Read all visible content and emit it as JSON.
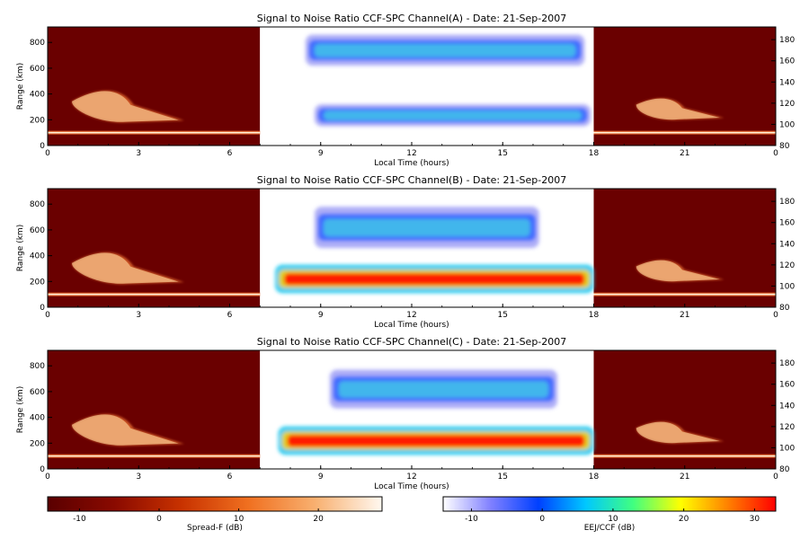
{
  "chart_data": {
    "type": "heatmap",
    "panels": [
      {
        "id": "A",
        "title": "Signal to Noise Ratio CCF-SPC Channel(A) - Date: 21-Sep-2007",
        "xlabel": "Local Time (hours)",
        "ylabel": "Range (km)",
        "x_ticks": [
          "0",
          "3",
          "6",
          "9",
          "12",
          "15",
          "18",
          "21",
          "0"
        ],
        "x_range_hours": [
          0,
          24
        ],
        "y_left_ticks": [
          "0",
          "200",
          "400",
          "600",
          "800"
        ],
        "y_left_range_km": [
          0,
          920
        ],
        "y_right_ticks": [
          "80",
          "100",
          "120",
          "140",
          "160",
          "180"
        ],
        "y_right_range_km": [
          80,
          192
        ],
        "night_windows_hours": [
          [
            0,
            7
          ],
          [
            18,
            24
          ]
        ],
        "day_window_hours": [
          7,
          18
        ],
        "day_echoes": [
          {
            "t_start": 8.8,
            "t_end": 17.9,
            "alt_low_km": 150,
            "alt_high_km": 320,
            "peak_db": 10
          },
          {
            "t_start": 8.5,
            "t_end": 17.7,
            "alt_low_km": 620,
            "alt_high_km": 860,
            "peak_db": 6
          }
        ],
        "night_echoes": [
          {
            "t_start": 0,
            "t_end": 7,
            "alt_km": 100,
            "kind": "layer"
          },
          {
            "t_start": 0.8,
            "t_end": 4.5,
            "alt_low_km": 180,
            "alt_high_km": 450,
            "kind": "spread-F"
          },
          {
            "t_start": 18,
            "t_end": 24,
            "alt_km": 100,
            "kind": "layer"
          },
          {
            "t_start": 19.4,
            "t_end": 22.3,
            "alt_low_km": 200,
            "alt_high_km": 380,
            "kind": "spread-F"
          }
        ]
      },
      {
        "id": "B",
        "title": "Signal to Noise Ratio CCF-SPC Channel(B) - Date: 21-Sep-2007",
        "xlabel": "Local Time (hours)",
        "ylabel": "Range (km)",
        "x_ticks": [
          "0",
          "3",
          "6",
          "9",
          "12",
          "15",
          "18",
          "21",
          "0"
        ],
        "x_range_hours": [
          0,
          24
        ],
        "y_left_ticks": [
          "0",
          "200",
          "400",
          "600",
          "800"
        ],
        "y_left_range_km": [
          0,
          920
        ],
        "y_right_ticks": [
          "80",
          "100",
          "120",
          "140",
          "160",
          "180"
        ],
        "y_right_range_km": [
          80,
          192
        ],
        "night_windows_hours": [
          [
            0,
            7
          ],
          [
            18,
            24
          ]
        ],
        "day_window_hours": [
          7,
          18
        ],
        "day_echoes": [
          {
            "t_start": 7.5,
            "t_end": 18,
            "alt_low_km": 110,
            "alt_high_km": 330,
            "peak_db": 32
          },
          {
            "t_start": 8.8,
            "t_end": 16.2,
            "alt_low_km": 460,
            "alt_high_km": 780,
            "peak_db": 2
          }
        ],
        "night_echoes": [
          {
            "t_start": 0,
            "t_end": 7,
            "alt_km": 100,
            "kind": "layer"
          },
          {
            "t_start": 0.8,
            "t_end": 4.5,
            "alt_low_km": 180,
            "alt_high_km": 450,
            "kind": "spread-F"
          },
          {
            "t_start": 18,
            "t_end": 24,
            "alt_km": 100,
            "kind": "layer"
          },
          {
            "t_start": 19.4,
            "t_end": 22.3,
            "alt_low_km": 200,
            "alt_high_km": 380,
            "kind": "spread-F"
          }
        ]
      },
      {
        "id": "C",
        "title": "Signal to Noise Ratio CCF-SPC Channel(C) - Date: 21-Sep-2007",
        "xlabel": "Local Time (hours)",
        "ylabel": "Range (km)",
        "x_ticks": [
          "0",
          "3",
          "6",
          "9",
          "12",
          "15",
          "18",
          "21",
          "0"
        ],
        "x_range_hours": [
          0,
          24
        ],
        "y_left_ticks": [
          "0",
          "200",
          "400",
          "600",
          "800"
        ],
        "y_left_range_km": [
          0,
          920
        ],
        "y_right_ticks": [
          "80",
          "100",
          "120",
          "140",
          "160",
          "180"
        ],
        "y_right_range_km": [
          80,
          192
        ],
        "night_windows_hours": [
          [
            0,
            7
          ],
          [
            18,
            24
          ]
        ],
        "day_window_hours": [
          7,
          18
        ],
        "day_echoes": [
          {
            "t_start": 7.6,
            "t_end": 18,
            "alt_low_km": 110,
            "alt_high_km": 330,
            "peak_db": 32
          },
          {
            "t_start": 9.3,
            "t_end": 16.8,
            "alt_low_km": 470,
            "alt_high_km": 770,
            "peak_db": 2
          }
        ],
        "night_echoes": [
          {
            "t_start": 0,
            "t_end": 7,
            "alt_km": 100,
            "kind": "layer"
          },
          {
            "t_start": 0.8,
            "t_end": 4.5,
            "alt_low_km": 180,
            "alt_high_km": 450,
            "kind": "spread-F"
          },
          {
            "t_start": 18,
            "t_end": 24,
            "alt_km": 100,
            "kind": "layer"
          },
          {
            "t_start": 19.4,
            "t_end": 22.3,
            "alt_low_km": 200,
            "alt_high_km": 380,
            "kind": "spread-F"
          }
        ]
      }
    ],
    "colorbars": [
      {
        "id": "spread-f",
        "label": "Spread-F (dB)",
        "ticks": [
          "-10",
          "0",
          "10",
          "20"
        ],
        "range_db": [
          -14,
          28
        ],
        "colors": [
          "#5a0000",
          "#8a0a00",
          "#c83200",
          "#f07020",
          "#f8b070",
          "#fff8f0"
        ]
      },
      {
        "id": "eej-ccf",
        "label": "EEJ/CCF (dB)",
        "ticks": [
          "-10",
          "0",
          "10",
          "20",
          "30"
        ],
        "range_db": [
          -14,
          33
        ],
        "colors": [
          "#ffffff",
          "#8080ff",
          "#0040ff",
          "#00c8ff",
          "#40ff80",
          "#ffff00",
          "#ff8000",
          "#ff0000"
        ]
      }
    ],
    "colors": {
      "night_background": "#6a0000",
      "day_background": "#ffffff"
    }
  }
}
